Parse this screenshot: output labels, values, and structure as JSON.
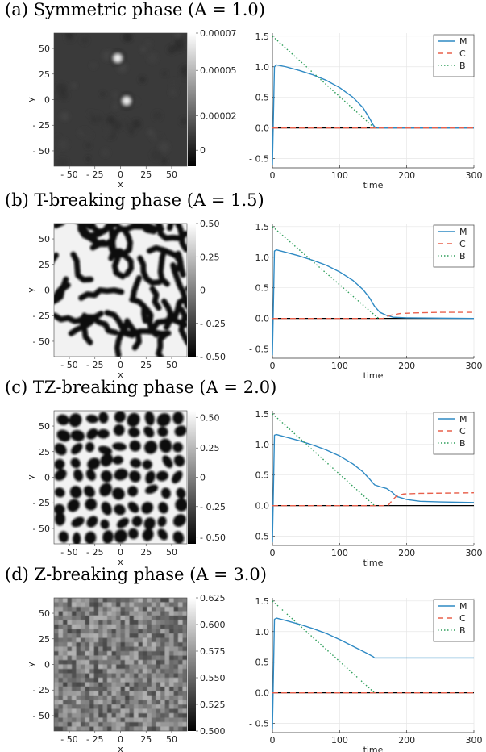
{
  "panels": [
    {
      "title": "(a) Symmetric phase (A = 1.0)",
      "image_plot": {
        "pattern": "sparse-blobs",
        "xlabel": "x",
        "ylabel": "y",
        "xticks": [
          "- 50",
          "- 25",
          "0",
          "25",
          "50"
        ],
        "yticks": [
          "50",
          "25",
          "0",
          "- 25",
          "- 50"
        ],
        "colorbar_ticks": [
          {
            "label": "0.00007",
            "frac": 1.0
          },
          {
            "label": "0.00005",
            "frac": 0.72
          },
          {
            "label": "0.00002",
            "frac": 0.38
          },
          {
            "label": "0",
            "frac": 0.12
          }
        ]
      },
      "chart_data": {
        "type": "line",
        "xlabel": "time",
        "ylabel": "",
        "xlim": [
          0,
          300
        ],
        "ylim": [
          -0.65,
          1.55
        ],
        "xticks": [
          0,
          100,
          200,
          300
        ],
        "yticks": [
          1.5,
          1.0,
          0.5,
          0.0,
          -0.5
        ],
        "grid": true,
        "legend": "top-right",
        "series": [
          {
            "name": "M",
            "color": "#2f8ac4",
            "dash": "solid",
            "x": [
              0,
              3,
              6,
              20,
              40,
              60,
              80,
              100,
              120,
              135,
              145,
              150,
              153,
              160,
              200,
              300
            ],
            "y": [
              -0.6,
              1.0,
              1.03,
              1.0,
              0.94,
              0.87,
              0.78,
              0.66,
              0.5,
              0.33,
              0.15,
              0.05,
              0.01,
              0.0,
              0.0,
              0.0
            ]
          },
          {
            "name": "C",
            "color": "#e8604c",
            "dash": "dashed",
            "x": [
              0,
              300
            ],
            "y": [
              0.0,
              0.0
            ]
          },
          {
            "name": "B",
            "color": "#2e9e5a",
            "dash": "dotted",
            "x": [
              0,
              152
            ],
            "y": [
              1.5,
              0.0
            ]
          }
        ],
        "baseline_color": "#000000"
      }
    },
    {
      "title": "(b) T-breaking phase (A = 1.5)",
      "image_plot": {
        "pattern": "labyrinth",
        "xlabel": "x",
        "ylabel": "y",
        "xticks": [
          "- 50",
          "- 25",
          "0",
          "25",
          "50"
        ],
        "yticks": [
          "50",
          "25",
          "0",
          "- 25",
          "- 50"
        ],
        "colorbar_ticks": [
          {
            "label": "0.50",
            "frac": 1.0
          },
          {
            "label": "0.25",
            "frac": 0.75
          },
          {
            "label": "0",
            "frac": 0.5
          },
          {
            "label": "- 0.25",
            "frac": 0.25
          },
          {
            "label": "- 0.50",
            "frac": 0.0
          }
        ]
      },
      "chart_data": {
        "type": "line",
        "xlabel": "time",
        "ylabel": "",
        "xlim": [
          0,
          300
        ],
        "ylim": [
          -0.65,
          1.55
        ],
        "xticks": [
          0,
          100,
          200,
          300
        ],
        "yticks": [
          1.5,
          1.0,
          0.5,
          0.0,
          -0.5
        ],
        "grid": true,
        "legend": "top-right",
        "series": [
          {
            "name": "M",
            "color": "#2f8ac4",
            "dash": "solid",
            "x": [
              0,
              3,
              6,
              20,
              40,
              60,
              80,
              100,
              120,
              135,
              145,
              152,
              160,
              170,
              180,
              200,
              300
            ],
            "y": [
              -0.6,
              1.1,
              1.12,
              1.08,
              1.02,
              0.95,
              0.87,
              0.76,
              0.62,
              0.47,
              0.33,
              0.2,
              0.1,
              0.05,
              0.02,
              0.01,
              0.0
            ]
          },
          {
            "name": "C",
            "color": "#e8604c",
            "dash": "dashed",
            "x": [
              0,
              165,
              175,
              190,
              210,
              250,
              300
            ],
            "y": [
              0.0,
              0.0,
              0.05,
              0.08,
              0.09,
              0.1,
              0.1
            ]
          },
          {
            "name": "B",
            "color": "#2e9e5a",
            "dash": "dotted",
            "x": [
              0,
              158
            ],
            "y": [
              1.5,
              0.0
            ]
          }
        ],
        "baseline_color": "#000000"
      }
    },
    {
      "title": "(c) TZ-breaking phase (A = 2.0)",
      "image_plot": {
        "pattern": "spots",
        "xlabel": "x",
        "ylabel": "y",
        "xticks": [
          "- 50",
          "- 25",
          "0",
          "25",
          "50"
        ],
        "yticks": [
          "50",
          "25",
          "0",
          "- 25",
          "- 50"
        ],
        "colorbar_ticks": [
          {
            "label": "0.50",
            "frac": 0.95
          },
          {
            "label": "0.25",
            "frac": 0.72
          },
          {
            "label": "0",
            "frac": 0.5
          },
          {
            "label": "- 0.25",
            "frac": 0.28
          },
          {
            "label": "- 0.50",
            "frac": 0.05
          }
        ]
      },
      "chart_data": {
        "type": "line",
        "xlabel": "time",
        "ylabel": "",
        "xlim": [
          0,
          300
        ],
        "ylim": [
          -0.65,
          1.55
        ],
        "xticks": [
          0,
          100,
          200,
          300
        ],
        "yticks": [
          1.5,
          1.0,
          0.5,
          0.0,
          -0.5
        ],
        "grid": true,
        "legend": "top-right",
        "series": [
          {
            "name": "M",
            "color": "#2f8ac4",
            "dash": "solid",
            "x": [
              0,
              3,
              6,
              20,
              40,
              60,
              80,
              100,
              120,
              135,
              145,
              152,
              160,
              170,
              178,
              185,
              200,
              220,
              250,
              300
            ],
            "y": [
              -0.6,
              1.15,
              1.16,
              1.12,
              1.06,
              0.99,
              0.91,
              0.81,
              0.68,
              0.55,
              0.43,
              0.34,
              0.31,
              0.28,
              0.22,
              0.15,
              0.1,
              0.07,
              0.06,
              0.05
            ]
          },
          {
            "name": "C",
            "color": "#e8604c",
            "dash": "dashed",
            "x": [
              0,
              172,
              178,
              185,
              195,
              220,
              300
            ],
            "y": [
              0.0,
              0.0,
              0.08,
              0.16,
              0.19,
              0.2,
              0.21
            ]
          },
          {
            "name": "B",
            "color": "#2e9e5a",
            "dash": "dotted",
            "x": [
              0,
              152
            ],
            "y": [
              1.5,
              0.0
            ]
          }
        ],
        "baseline_color": "#000000"
      }
    },
    {
      "title": "(d) Z-breaking phase (A = 3.0)",
      "image_plot": {
        "pattern": "noise",
        "xlabel": "x",
        "ylabel": "y",
        "xticks": [
          "- 50",
          "- 25",
          "0",
          "25",
          "50"
        ],
        "yticks": [
          "50",
          "25",
          "0",
          "- 25",
          "- 50"
        ],
        "colorbar_ticks": [
          {
            "label": "0.625",
            "frac": 1.0
          },
          {
            "label": "0.600",
            "frac": 0.8
          },
          {
            "label": "0.575",
            "frac": 0.6
          },
          {
            "label": "0.550",
            "frac": 0.4
          },
          {
            "label": "0.525",
            "frac": 0.2
          },
          {
            "label": "0.500",
            "frac": 0.0
          }
        ]
      },
      "chart_data": {
        "type": "line",
        "xlabel": "time",
        "ylabel": "",
        "xlim": [
          0,
          300
        ],
        "ylim": [
          -0.65,
          1.55
        ],
        "xticks": [
          0,
          100,
          200,
          300
        ],
        "yticks": [
          1.5,
          1.0,
          0.5,
          0.0,
          -0.5
        ],
        "grid": true,
        "legend": "top-right",
        "series": [
          {
            "name": "M",
            "color": "#2f8ac4",
            "dash": "solid",
            "x": [
              0,
              3,
              6,
              20,
              40,
              60,
              80,
              100,
              120,
              140,
              150,
              152,
              200,
              300
            ],
            "y": [
              -0.6,
              1.2,
              1.22,
              1.18,
              1.12,
              1.05,
              0.97,
              0.87,
              0.76,
              0.65,
              0.59,
              0.57,
              0.57,
              0.57
            ]
          },
          {
            "name": "C",
            "color": "#e8604c",
            "dash": "dashed",
            "x": [
              0,
              300
            ],
            "y": [
              0.0,
              0.0
            ]
          },
          {
            "name": "B",
            "color": "#2e9e5a",
            "dash": "dotted",
            "x": [
              0,
              152
            ],
            "y": [
              1.5,
              0.0
            ]
          }
        ],
        "baseline_color": "#000000"
      }
    }
  ]
}
